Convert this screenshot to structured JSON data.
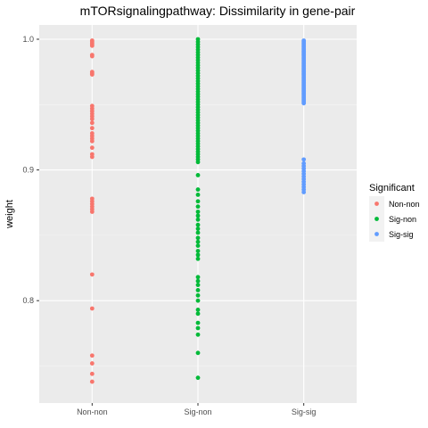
{
  "chart_data": {
    "type": "scatter",
    "title": "mTORsignalingpathway: Dissimilarity in gene-pair",
    "xlabel": "",
    "ylabel": "weight",
    "categories": [
      "Non-non",
      "Sig-non",
      "Sig-sig"
    ],
    "yticks": [
      0.8,
      0.9,
      1.0
    ],
    "ytick_labels": [
      "0.8",
      "0.9",
      "1.0"
    ],
    "ylim": [
      0.736,
      1.0
    ],
    "grid": true,
    "legend": {
      "title": "Significant",
      "placement": "right",
      "entries": [
        "Non-non",
        "Sig-non",
        "Sig-sig"
      ]
    },
    "series": [
      {
        "name": "Non-non",
        "color": "#F8766D",
        "category": "Non-non",
        "values": [
          0.999,
          0.998,
          0.997,
          0.996,
          0.995,
          0.988,
          0.987,
          0.975,
          0.974,
          0.973,
          0.949,
          0.947,
          0.945,
          0.943,
          0.941,
          0.939,
          0.936,
          0.932,
          0.928,
          0.926,
          0.924,
          0.922,
          0.917,
          0.912,
          0.91,
          0.878,
          0.876,
          0.874,
          0.872,
          0.87,
          0.868,
          0.82,
          0.794,
          0.758,
          0.752,
          0.744,
          0.738
        ]
      },
      {
        "name": "Sig-non",
        "color": "#00BA38",
        "category": "Sig-non",
        "values": [
          1.0,
          0.998,
          0.996,
          0.994,
          0.992,
          0.99,
          0.988,
          0.986,
          0.984,
          0.982,
          0.98,
          0.978,
          0.976,
          0.974,
          0.972,
          0.97,
          0.968,
          0.966,
          0.964,
          0.962,
          0.96,
          0.958,
          0.956,
          0.954,
          0.952,
          0.95,
          0.948,
          0.946,
          0.944,
          0.942,
          0.94,
          0.938,
          0.936,
          0.934,
          0.932,
          0.93,
          0.928,
          0.926,
          0.924,
          0.922,
          0.92,
          0.918,
          0.916,
          0.914,
          0.912,
          0.91,
          0.908,
          0.906,
          0.896,
          0.885,
          0.881,
          0.876,
          0.872,
          0.868,
          0.865,
          0.862,
          0.858,
          0.855,
          0.852,
          0.848,
          0.845,
          0.842,
          0.838,
          0.835,
          0.832,
          0.818,
          0.815,
          0.812,
          0.808,
          0.804,
          0.8,
          0.793,
          0.79,
          0.783,
          0.779,
          0.774,
          0.76,
          0.741
        ]
      },
      {
        "name": "Sig-sig",
        "color": "#619CFF",
        "category": "Sig-sig",
        "values": [
          0.999,
          0.998,
          0.997,
          0.996,
          0.995,
          0.994,
          0.993,
          0.992,
          0.991,
          0.99,
          0.989,
          0.988,
          0.987,
          0.986,
          0.985,
          0.984,
          0.983,
          0.982,
          0.981,
          0.98,
          0.979,
          0.978,
          0.977,
          0.976,
          0.975,
          0.974,
          0.973,
          0.972,
          0.971,
          0.97,
          0.969,
          0.968,
          0.967,
          0.966,
          0.965,
          0.964,
          0.963,
          0.962,
          0.961,
          0.96,
          0.959,
          0.958,
          0.957,
          0.956,
          0.955,
          0.954,
          0.953,
          0.952,
          0.951,
          0.908,
          0.905,
          0.903,
          0.901,
          0.899,
          0.897,
          0.895,
          0.893,
          0.891,
          0.889,
          0.887,
          0.885,
          0.883
        ]
      }
    ]
  }
}
